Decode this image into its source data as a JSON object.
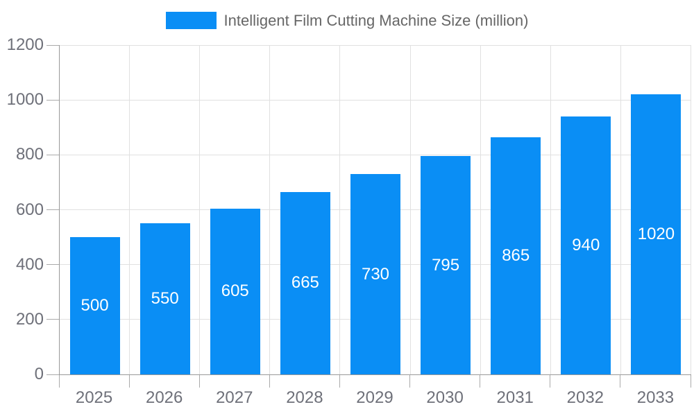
{
  "chart_data": {
    "type": "bar",
    "title": "Intelligent Film Cutting Machine Size (million)",
    "legend": {
      "label": "Intelligent Film Cutting Machine Size (million)",
      "position": "top-center"
    },
    "categories": [
      "2025",
      "2026",
      "2027",
      "2028",
      "2029",
      "2030",
      "2031",
      "2032",
      "2033"
    ],
    "series": [
      {
        "name": "Intelligent Film Cutting Machine Size (million)",
        "values": [
          500,
          550,
          605,
          665,
          730,
          795,
          865,
          940,
          1020
        ]
      }
    ],
    "value_labels": [
      "500",
      "550",
      "605",
      "665",
      "730",
      "795",
      "865",
      "940",
      "1020"
    ],
    "xlabel": "",
    "ylabel": "",
    "ylim": [
      0,
      1200
    ],
    "yticks": [
      0,
      200,
      400,
      600,
      800,
      1000,
      1200
    ],
    "grid": true
  },
  "colors": {
    "bar_fill": "#0a8ef5",
    "value_label": "#ffffff",
    "axis_line": "#999999",
    "tick_mark": "#aaaaaa",
    "grid_line": "#e0e0e0",
    "axis_label": "#6e7079",
    "legend_text": "#666666",
    "background": "#ffffff"
  }
}
